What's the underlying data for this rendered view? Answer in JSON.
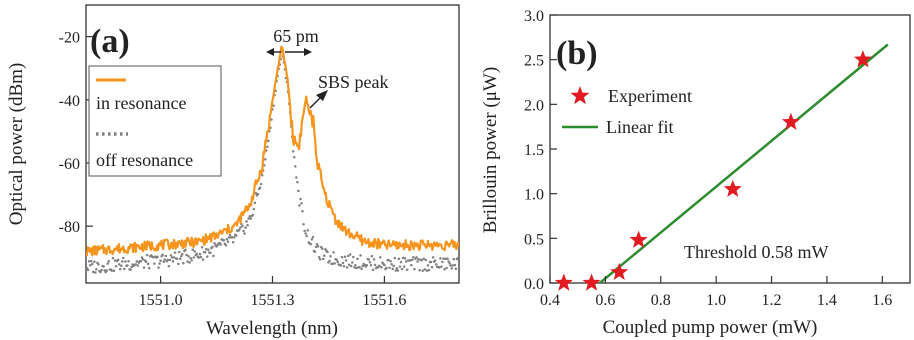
{
  "chart_data": [
    {
      "type": "line",
      "panel_label": "(a)",
      "xlabel": "Wavelength (nm)",
      "ylabel": "Optical power (dBm)",
      "xlim": [
        1550.8,
        1551.8
      ],
      "ylim": [
        -98,
        -10
      ],
      "x_ticks": [
        1551.0,
        1551.3,
        1551.6
      ],
      "x_tick_labels": [
        "1551.0",
        "1551.3",
        "1551.6"
      ],
      "y_ticks": [
        -20,
        -40,
        -60,
        -80
      ],
      "y_tick_labels": [
        "-20",
        "-40",
        "-60",
        "-80"
      ],
      "legend_position": "top-left",
      "annotations": {
        "linewidth": "65 pm",
        "sbs": "SBS peak"
      },
      "series": [
        {
          "name": "in resonance",
          "style": "solid",
          "color": "#f7941d",
          "x": [
            1550.8,
            1550.9,
            1551.0,
            1551.1,
            1551.15,
            1551.2,
            1551.24,
            1551.27,
            1551.29,
            1551.31,
            1551.325,
            1551.34,
            1551.355,
            1551.37,
            1551.38,
            1551.39,
            1551.4,
            1551.41,
            1551.42,
            1551.44,
            1551.47,
            1551.5,
            1551.55,
            1551.6,
            1551.7,
            1551.8
          ],
          "values": [
            -88,
            -87,
            -86,
            -85,
            -83,
            -80,
            -73,
            -62,
            -48,
            -33,
            -23,
            -33,
            -52,
            -55,
            -47,
            -39,
            -45,
            -47,
            -60,
            -70,
            -78,
            -82,
            -85,
            -86,
            -86,
            -86
          ]
        },
        {
          "name": "off resonance",
          "style": "dotted",
          "color": "#808080",
          "x": [
            1550.8,
            1550.9,
            1551.0,
            1551.1,
            1551.15,
            1551.2,
            1551.24,
            1551.27,
            1551.29,
            1551.31,
            1551.325,
            1551.34,
            1551.355,
            1551.37,
            1551.39,
            1551.42,
            1551.45,
            1551.5,
            1551.6,
            1551.7,
            1551.8
          ],
          "values": [
            -93,
            -92,
            -91,
            -89,
            -87,
            -84,
            -78,
            -66,
            -52,
            -35,
            -25,
            -35,
            -55,
            -70,
            -82,
            -88,
            -90,
            -91,
            -92,
            -92,
            -92
          ]
        }
      ]
    },
    {
      "type": "scatter",
      "panel_label": "(b)",
      "xlabel": "Coupled pump power (mW)",
      "ylabel": "Brillouin power (μW)",
      "xlim": [
        0.4,
        1.7
      ],
      "ylim": [
        0,
        3.0
      ],
      "x_ticks": [
        0.4,
        0.6,
        0.8,
        1.0,
        1.2,
        1.4,
        1.6
      ],
      "x_tick_labels": [
        "0.4",
        "0.6",
        "0.8",
        "1.0",
        "1.2",
        "1.4",
        "1.6"
      ],
      "y_ticks": [
        0.0,
        0.5,
        1.0,
        1.5,
        2.0,
        2.5,
        3.0
      ],
      "y_tick_labels": [
        "0.0",
        "0.5",
        "1.0",
        "1.5",
        "2.0",
        "2.5",
        "3.0"
      ],
      "legend_position": "top-left",
      "annotation": "Threshold 0.58 mW",
      "series": [
        {
          "name": "Experiment",
          "marker": "star",
          "color": "#e11b22",
          "x": [
            0.45,
            0.55,
            0.65,
            0.72,
            1.06,
            1.27,
            1.53
          ],
          "values": [
            0.0,
            0.0,
            0.12,
            0.48,
            1.05,
            1.8,
            2.5
          ]
        },
        {
          "name": "Linear fit",
          "style": "solid",
          "color": "#2e8b2e",
          "x": [
            0.58,
            1.62
          ],
          "values": [
            0.0,
            2.67
          ]
        }
      ]
    }
  ]
}
